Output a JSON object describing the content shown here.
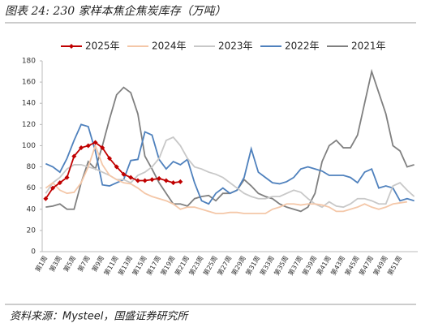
{
  "chart_data": {
    "type": "line",
    "title": "图表 24:  230 家样本焦企焦炭库存（万吨）",
    "source": "资料来源：Mysteel，国盛证券研究所",
    "categories": [
      "第1周",
      null,
      "第3周",
      null,
      "第5周",
      null,
      "第7周",
      null,
      "第9周",
      null,
      "第11周",
      null,
      "第13周",
      null,
      "第15周",
      null,
      "第17周",
      null,
      "第19周",
      null,
      "第21周",
      null,
      "第23周",
      null,
      "第25周",
      null,
      "第27周",
      null,
      "第29周",
      null,
      "第31周",
      null,
      "第33周",
      null,
      "第35周",
      null,
      "第37周",
      null,
      "第39周",
      null,
      "第41周",
      null,
      "第43周",
      null,
      "第45周",
      null,
      "第47周",
      null,
      "第49周",
      null,
      "第51周",
      null,
      null
    ],
    "ylim": [
      0,
      180
    ],
    "yticks": [
      0,
      20,
      40,
      60,
      80,
      100,
      120,
      140,
      160,
      180
    ],
    "series": [
      {
        "name": "2025年",
        "color": "#c00000",
        "markers": true,
        "values": [
          50,
          60,
          65,
          70,
          90,
          98,
          100,
          103,
          98,
          88,
          80,
          73,
          70,
          67,
          67,
          68,
          69,
          67,
          65,
          66,
          null,
          null,
          null,
          null,
          null,
          null,
          null,
          null,
          null,
          null,
          null,
          null,
          null,
          null,
          null,
          null,
          null,
          null,
          null,
          null,
          null,
          null,
          null,
          null,
          null,
          null,
          null,
          null,
          null,
          null,
          null,
          null,
          null
        ]
      },
      {
        "name": "2024年",
        "color": "#f4c7a8",
        "markers": false,
        "values": [
          60,
          65,
          58,
          55,
          56,
          65,
          80,
          100,
          82,
          72,
          68,
          65,
          64,
          60,
          55,
          52,
          50,
          48,
          45,
          40,
          42,
          42,
          40,
          38,
          36,
          36,
          37,
          37,
          36,
          36,
          36,
          36,
          40,
          42,
          45,
          45,
          44,
          45,
          45,
          44,
          42,
          38,
          38,
          40,
          42,
          45,
          42,
          40,
          42,
          45,
          46,
          47,
          null
        ]
      },
      {
        "name": "2023年",
        "color": "#c8c8c8",
        "markers": false,
        "values": [
          55,
          65,
          70,
          78,
          82,
          82,
          80,
          78,
          75,
          72,
          68,
          68,
          65,
          72,
          75,
          80,
          88,
          105,
          108,
          100,
          88,
          80,
          78,
          75,
          73,
          70,
          65,
          60,
          55,
          52,
          50,
          50,
          52,
          52,
          55,
          58,
          56,
          50,
          45,
          42,
          47,
          43,
          42,
          45,
          50,
          50,
          48,
          45,
          45,
          62,
          65,
          58,
          52
        ]
      },
      {
        "name": "2022年",
        "color": "#4f81bd",
        "markers": false,
        "values": [
          83,
          80,
          75,
          88,
          105,
          120,
          118,
          95,
          63,
          62,
          65,
          68,
          86,
          87,
          113,
          110,
          87,
          78,
          85,
          82,
          87,
          65,
          48,
          45,
          55,
          60,
          55,
          58,
          70,
          97,
          75,
          70,
          65,
          64,
          66,
          70,
          78,
          80,
          78,
          76,
          72,
          72,
          72,
          70,
          65,
          75,
          78,
          60,
          62,
          60,
          48,
          50,
          48
        ]
      },
      {
        "name": "2021年",
        "color": "#808080",
        "markers": false,
        "values": [
          42,
          43,
          45,
          40,
          40,
          65,
          85,
          78,
          100,
          125,
          148,
          155,
          150,
          130,
          90,
          78,
          65,
          55,
          45,
          45,
          43,
          50,
          52,
          53,
          48,
          55,
          55,
          58,
          68,
          62,
          55,
          52,
          50,
          45,
          42,
          40,
          38,
          42,
          55,
          85,
          100,
          105,
          98,
          98,
          110,
          140,
          170,
          150,
          130,
          100,
          95,
          80,
          82
        ]
      }
    ]
  }
}
